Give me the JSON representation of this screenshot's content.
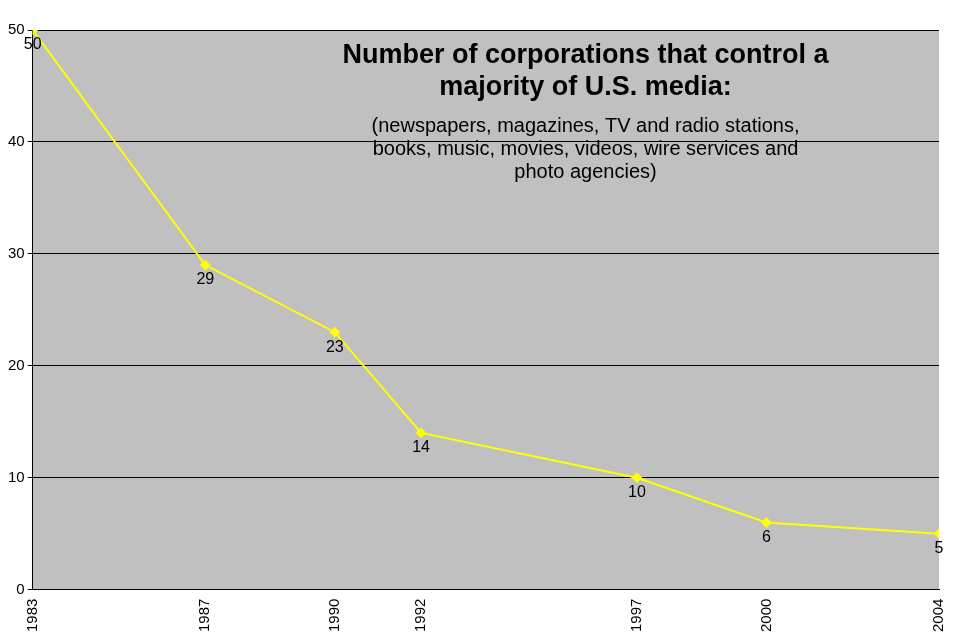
{
  "chart_data": {
    "type": "line",
    "title": "Number of corporations that control a majority of U.S. media:",
    "subtitle": "(newspapers, magazines, TV and radio stations, books, music, movies, videos, wire services and photo agencies)",
    "x": [
      1983,
      1987,
      1990,
      1992,
      1997,
      2000,
      2004
    ],
    "values": [
      50,
      29,
      23,
      14,
      10,
      6,
      5
    ],
    "color": "#ffff00",
    "marker": "diamond",
    "line_style": "solid",
    "xlim": [
      1983,
      2004
    ],
    "xticks": [
      1983,
      1987,
      1990,
      1992,
      1997,
      2000,
      2004
    ],
    "ylim": [
      0,
      50
    ],
    "yticks": [
      0,
      10,
      20,
      30,
      40,
      50
    ],
    "grid": true,
    "data_labels": true
  }
}
